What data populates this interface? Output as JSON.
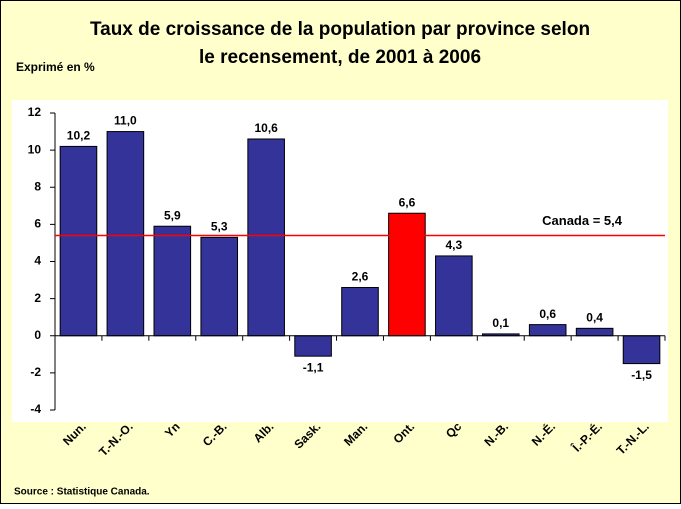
{
  "chart_data": {
    "type": "bar",
    "title": "Taux de croissance de la population par province selon le recensement, de 2001 à 2006",
    "subtitle": "Exprimé en %",
    "categories": [
      "Nun.",
      "T.-N.-O.",
      "Yn",
      "C.-B.",
      "Alb.",
      "Sask.",
      "Man.",
      "Ont.",
      "Qc",
      "N.-B.",
      "N.-É.",
      "Î.-P.-É.",
      "T.-N.-L."
    ],
    "values": [
      10.2,
      11.0,
      5.9,
      5.3,
      10.6,
      -1.1,
      2.6,
      6.6,
      4.3,
      0.1,
      0.6,
      0.4,
      -1.5
    ],
    "value_labels": [
      "10,2",
      "11,0",
      "5,9",
      "5,3",
      "10,6",
      "-1,1",
      "2,6",
      "6,6",
      "4,3",
      "0,1",
      "0,6",
      "0,4",
      "-1,5"
    ],
    "colors": [
      "#333399",
      "#333399",
      "#333399",
      "#333399",
      "#333399",
      "#333399",
      "#333399",
      "#ff0000",
      "#333399",
      "#333399",
      "#333399",
      "#333399",
      "#333399"
    ],
    "ylim": [
      -4,
      12
    ],
    "yticks": [
      -4,
      -2,
      0,
      2,
      4,
      6,
      8,
      10,
      12
    ],
    "reference_line": {
      "value": 5.4,
      "label": "Canada = 5,4",
      "color": "#ff0000"
    },
    "source": "Source : Statistique Canada."
  }
}
